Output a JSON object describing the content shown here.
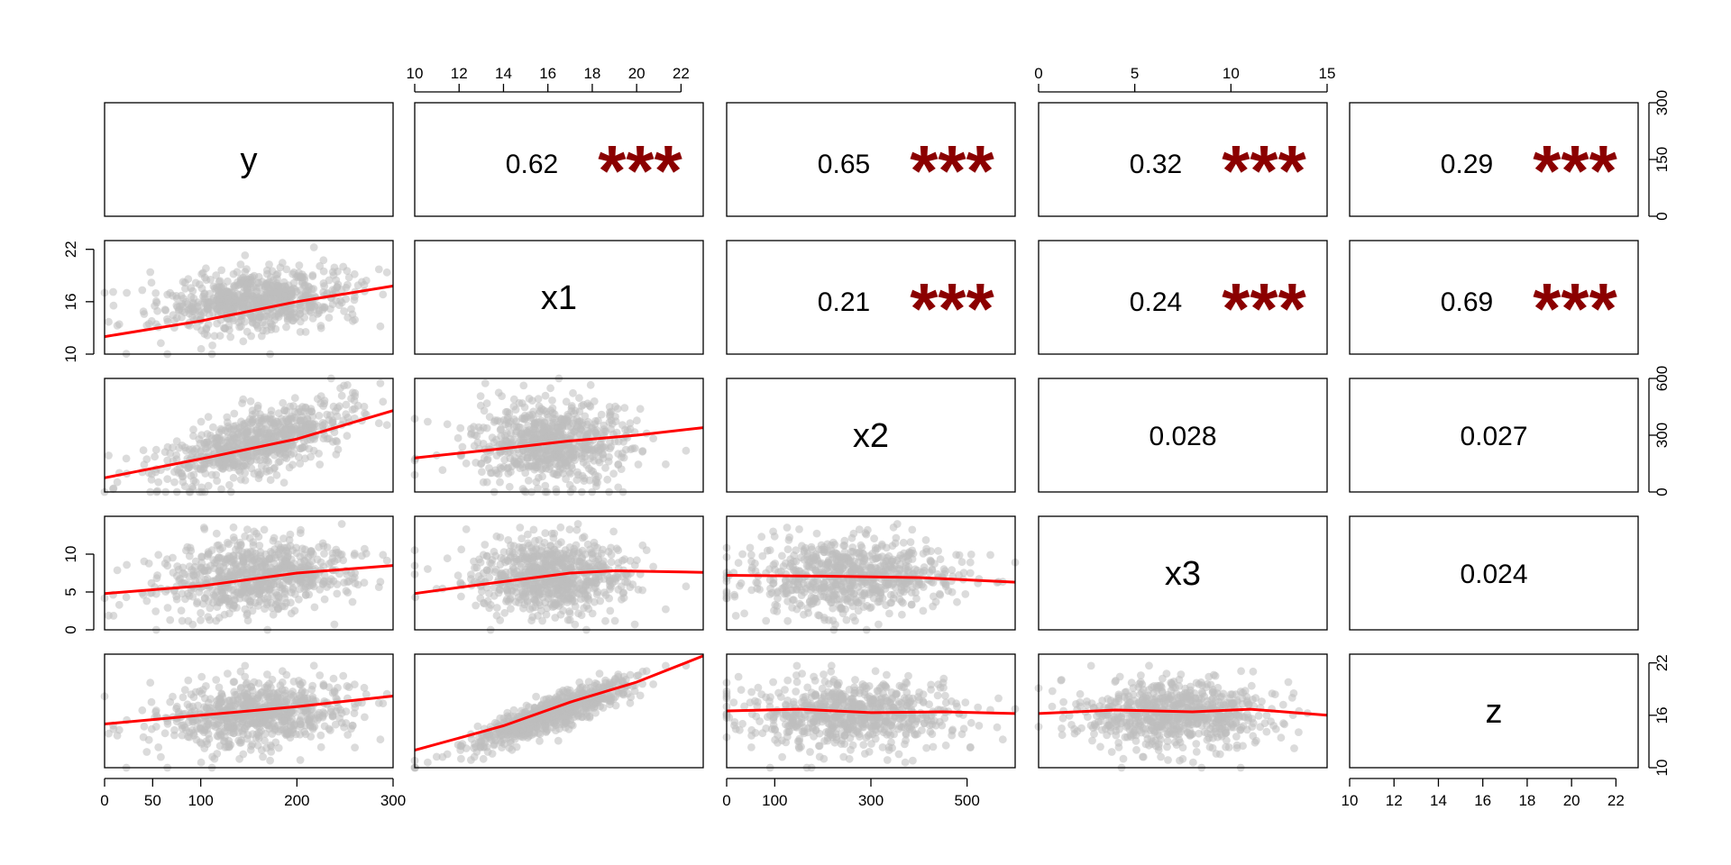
{
  "chart_data": {
    "type": "scatter-matrix",
    "variables": [
      "y",
      "x1",
      "x2",
      "x3",
      "z"
    ],
    "ranges": {
      "y": [
        0,
        300
      ],
      "x1": [
        10,
        23
      ],
      "x2": [
        0,
        600
      ],
      "x3": [
        0,
        15
      ],
      "z": [
        10,
        23
      ]
    },
    "ticks": {
      "y": [
        0,
        50,
        100,
        200,
        300
      ],
      "y_right": [
        0,
        150,
        300
      ],
      "x1": [
        10,
        12,
        14,
        16,
        18,
        20,
        22
      ],
      "x1_left": [
        10,
        16,
        22
      ],
      "x2": [
        0,
        100,
        300,
        500
      ],
      "x2_right": [
        0,
        300,
        600
      ],
      "x3_top": [
        0,
        5,
        10,
        15
      ],
      "x3_left": [
        0,
        5,
        10
      ],
      "z_right": [
        10,
        16,
        22
      ],
      "z_bottom": [
        10,
        12,
        14,
        16,
        18,
        20,
        22
      ]
    },
    "correlations": [
      {
        "row": 0,
        "col": 1,
        "value": "0.62",
        "stars": "***"
      },
      {
        "row": 0,
        "col": 2,
        "value": "0.65",
        "stars": "***"
      },
      {
        "row": 0,
        "col": 3,
        "value": "0.32",
        "stars": "***"
      },
      {
        "row": 0,
        "col": 4,
        "value": "0.29",
        "stars": "***"
      },
      {
        "row": 1,
        "col": 2,
        "value": "0.21",
        "stars": "***"
      },
      {
        "row": 1,
        "col": 3,
        "value": "0.24",
        "stars": "***"
      },
      {
        "row": 1,
        "col": 4,
        "value": "0.69",
        "stars": "***"
      },
      {
        "row": 2,
        "col": 3,
        "value": "0.028",
        "stars": ""
      },
      {
        "row": 2,
        "col": 4,
        "value": "0.027",
        "stars": ""
      },
      {
        "row": 3,
        "col": 4,
        "value": "0.024",
        "stars": ""
      }
    ],
    "smooth_lines": [
      {
        "row": 1,
        "col": 0,
        "points": [
          [
            0,
            12.0
          ],
          [
            100,
            13.8
          ],
          [
            200,
            16.0
          ],
          [
            300,
            17.8
          ]
        ]
      },
      {
        "row": 2,
        "col": 0,
        "points": [
          [
            0,
            75
          ],
          [
            100,
            175
          ],
          [
            200,
            280
          ],
          [
            300,
            430
          ]
        ]
      },
      {
        "row": 2,
        "col": 1,
        "points": [
          [
            10,
            180
          ],
          [
            14,
            230
          ],
          [
            17,
            270
          ],
          [
            20,
            300
          ],
          [
            23,
            340
          ]
        ]
      },
      {
        "row": 3,
        "col": 0,
        "points": [
          [
            0,
            4.8
          ],
          [
            100,
            5.8
          ],
          [
            200,
            7.5
          ],
          [
            300,
            8.5
          ]
        ]
      },
      {
        "row": 3,
        "col": 1,
        "points": [
          [
            10,
            4.8
          ],
          [
            13,
            6.0
          ],
          [
            17,
            7.5
          ],
          [
            19,
            7.8
          ],
          [
            23,
            7.6
          ]
        ]
      },
      {
        "row": 3,
        "col": 2,
        "points": [
          [
            0,
            7.2
          ],
          [
            200,
            7.1
          ],
          [
            400,
            6.9
          ],
          [
            600,
            6.3
          ]
        ]
      },
      {
        "row": 4,
        "col": 0,
        "points": [
          [
            0,
            15.0
          ],
          [
            100,
            16.0
          ],
          [
            200,
            17.0
          ],
          [
            300,
            18.2
          ]
        ]
      },
      {
        "row": 4,
        "col": 1,
        "points": [
          [
            10,
            12.0
          ],
          [
            14,
            14.8
          ],
          [
            17,
            17.5
          ],
          [
            20,
            19.8
          ],
          [
            23,
            22.8
          ]
        ]
      },
      {
        "row": 4,
        "col": 2,
        "points": [
          [
            0,
            16.5
          ],
          [
            150,
            16.7
          ],
          [
            300,
            16.3
          ],
          [
            450,
            16.4
          ],
          [
            600,
            16.2
          ]
        ]
      },
      {
        "row": 4,
        "col": 3,
        "points": [
          [
            0,
            16.2
          ],
          [
            4,
            16.6
          ],
          [
            8,
            16.4
          ],
          [
            11,
            16.7
          ],
          [
            15,
            16.0
          ]
        ]
      }
    ],
    "colors": {
      "points": "#bdbdbd",
      "smooth": "#ff0000",
      "stars": "#8b0000",
      "frame": "#000000"
    }
  }
}
